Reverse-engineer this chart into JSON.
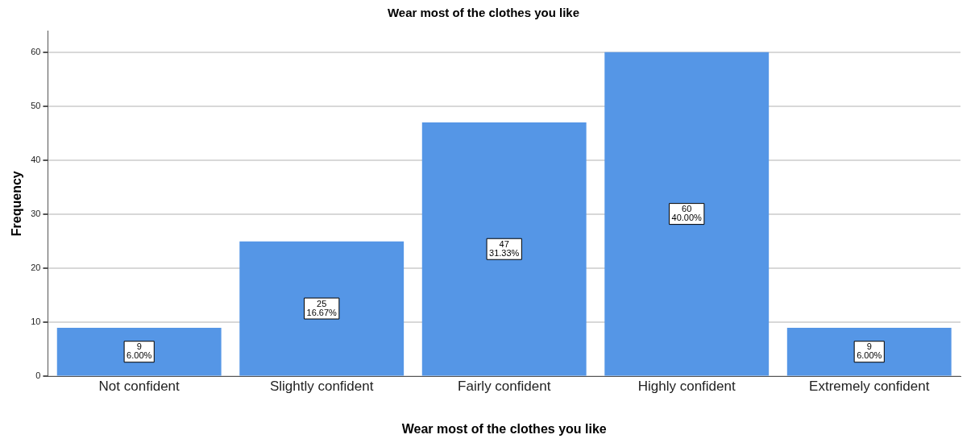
{
  "chart_data": {
    "type": "bar",
    "title": "Wear most of the clothes you like",
    "xlabel": "Wear most of the clothes you like",
    "ylabel": "Frequency",
    "categories": [
      "Not confident",
      "Slightly confident",
      "Fairly confident",
      "Highly confident",
      "Extremely confident"
    ],
    "values": [
      9,
      25,
      47,
      60,
      9
    ],
    "color": "#5596e6",
    "value_labels": [
      "9\n6.00%",
      "25\n16.67%",
      "47\n31.33%",
      "60\n40.00%",
      "9\n6.00%"
    ],
    "ylim": [
      0,
      64
    ],
    "yticks": [
      0,
      10,
      20,
      30,
      40,
      50,
      60
    ],
    "grid": "y",
    "legend": false
  }
}
